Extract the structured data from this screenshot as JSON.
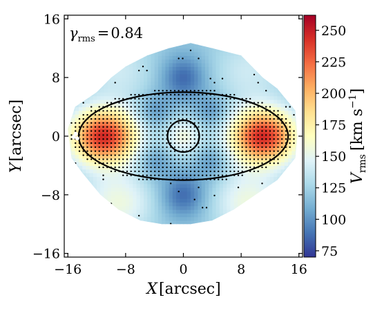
{
  "chart_data": {
    "type": "heatmap",
    "title": "",
    "annotation": {
      "symbol": "γ",
      "subscript": "rms",
      "relation": "=",
      "value": "0.84"
    },
    "xaxis": {
      "label_symbol": "X",
      "label_unit": "[arcsec]",
      "range": [
        -16.5,
        16.5
      ],
      "ticks": [
        -16,
        -8,
        0,
        8,
        16
      ],
      "tick_labels": [
        "−16",
        "−8",
        "0",
        "8",
        "16"
      ]
    },
    "yaxis": {
      "label_symbol": "Y",
      "label_unit": "[arcsec]",
      "range": [
        -16.5,
        16.5
      ],
      "ticks": [
        -16,
        -8,
        0,
        8,
        16
      ],
      "tick_labels": [
        "−16",
        "−8",
        "0",
        "8",
        "16"
      ]
    },
    "colorbar": {
      "label_symbol": "V",
      "label_subscript": "rms",
      "label_unit": "[km s",
      "label_unit_exp": "−1",
      "label_unit_close": "]",
      "range": [
        70,
        262
      ],
      "ticks": [
        75,
        100,
        125,
        150,
        175,
        200,
        225,
        250
      ],
      "tick_labels": [
        "75",
        "100",
        "125",
        "150",
        "175",
        "200",
        "225",
        "250"
      ],
      "colormap": "RdYlBu_r"
    },
    "field_outline": [
      [
        -15.5,
        -3
      ],
      [
        -16,
        1
      ],
      [
        -15,
        4
      ],
      [
        -12,
        6
      ],
      [
        -10,
        8
      ],
      [
        -8,
        9.5
      ],
      [
        -5,
        11
      ],
      [
        -2,
        12
      ],
      [
        1,
        12.7
      ],
      [
        4,
        12
      ],
      [
        8,
        11
      ],
      [
        11,
        8
      ],
      [
        13,
        6.5
      ],
      [
        15.5,
        3.5
      ],
      [
        15.8,
        0
      ],
      [
        15.5,
        -3
      ],
      [
        13,
        -6
      ],
      [
        10,
        -8
      ],
      [
        7,
        -10
      ],
      [
        4,
        -11.5
      ],
      [
        1,
        -12
      ],
      [
        -3,
        -12
      ],
      [
        -6,
        -11.5
      ],
      [
        -9,
        -10
      ],
      [
        -11.5,
        -8
      ],
      [
        -14,
        -5
      ]
    ],
    "velocity_field_components": [
      {
        "center": [
          -11,
          0
        ],
        "sigma": [
          3.2,
          2.6
        ],
        "amplitude": 125
      },
      {
        "center": [
          11,
          0
        ],
        "sigma": [
          3.2,
          2.6
        ],
        "amplitude": 125
      },
      {
        "center": [
          0,
          0
        ],
        "sigma": [
          1.8,
          1.8
        ],
        "amplitude": 35
      },
      {
        "center": [
          -4,
          3.5
        ],
        "sigma": [
          1.6,
          1.6
        ],
        "amplitude": -20
      },
      {
        "center": [
          4,
          3.5
        ],
        "sigma": [
          1.6,
          1.6
        ],
        "amplitude": -20
      },
      {
        "center": [
          -4,
          -3.5
        ],
        "sigma": [
          1.6,
          1.6
        ],
        "amplitude": -20
      },
      {
        "center": [
          4,
          -3.5
        ],
        "sigma": [
          1.6,
          1.6
        ],
        "amplitude": -20
      },
      {
        "center": [
          0,
          8
        ],
        "sigma": [
          2.2,
          2.2
        ],
        "amplitude": -35
      },
      {
        "center": [
          0,
          -8
        ],
        "sigma": [
          2.2,
          2.2
        ],
        "amplitude": -35
      },
      {
        "center": [
          -9,
          -9
        ],
        "sigma": [
          3.5,
          3
        ],
        "amplitude": 35
      },
      {
        "center": [
          9,
          -9
        ],
        "sigma": [
          3.5,
          3
        ],
        "amplitude": 35
      },
      {
        "center": [
          -9,
          9
        ],
        "sigma": [
          3.5,
          3
        ],
        "amplitude": 20
      },
      {
        "center": [
          9,
          9
        ],
        "sigma": [
          3.5,
          3
        ],
        "amplitude": 20
      }
    ],
    "velocity_base": 120,
    "ellipse": {
      "center": [
        0,
        0
      ],
      "semi_major": 14.5,
      "semi_minor": 6
    },
    "circle": {
      "center": [
        0,
        0
      ],
      "radius": 2.2
    },
    "bin_grid_spacing": 0.55
  }
}
